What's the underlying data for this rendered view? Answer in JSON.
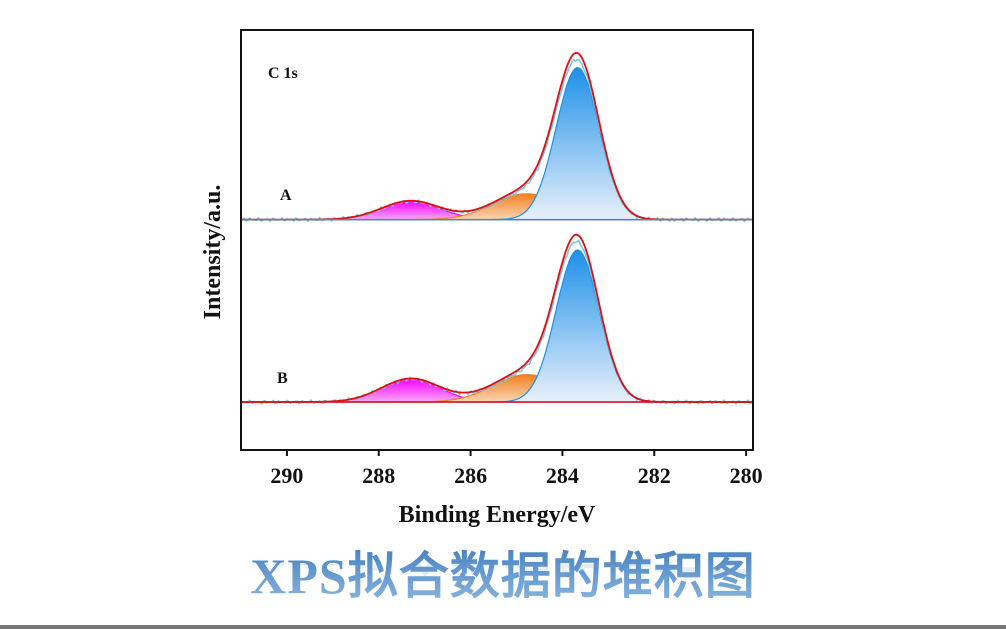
{
  "title": "XPS拟合数据的堆积图",
  "chart_data": {
    "type": "line",
    "stacked_offset": true,
    "annotation": "C 1s",
    "xlabel": "Binding Energy/eV",
    "ylabel": "Intensity/a.u.",
    "xlim": [
      291,
      279.85
    ],
    "x_reversed": true,
    "xticks": [
      290,
      288,
      286,
      284,
      282,
      280
    ],
    "yticks": [],
    "grid": false,
    "legend": "none",
    "colors": {
      "peak1": "#1e90e8",
      "peak2": "#f08020",
      "peak3": "#ff00ff",
      "envelope": "#e01010",
      "raw": "#6ec8e8"
    },
    "spectra": [
      {
        "label": "A",
        "baseline_offset": 1.2,
        "peaks": [
          {
            "center": 283.67,
            "fwhm": 1.1,
            "height": 1.0,
            "color": "#1e90e8"
          },
          {
            "center": 284.78,
            "fwhm": 1.7,
            "height": 0.17,
            "color": "#f08020"
          },
          {
            "center": 287.3,
            "fwhm": 1.5,
            "height": 0.12,
            "color": "#ff00ff"
          }
        ]
      },
      {
        "label": "B",
        "baseline_offset": 0,
        "peaks": [
          {
            "center": 283.67,
            "fwhm": 1.1,
            "height": 1.0,
            "color": "#1e90e8"
          },
          {
            "center": 284.78,
            "fwhm": 1.7,
            "height": 0.18,
            "color": "#f08020"
          },
          {
            "center": 287.3,
            "fwhm": 1.5,
            "height": 0.15,
            "color": "#ff00ff"
          }
        ]
      }
    ]
  }
}
